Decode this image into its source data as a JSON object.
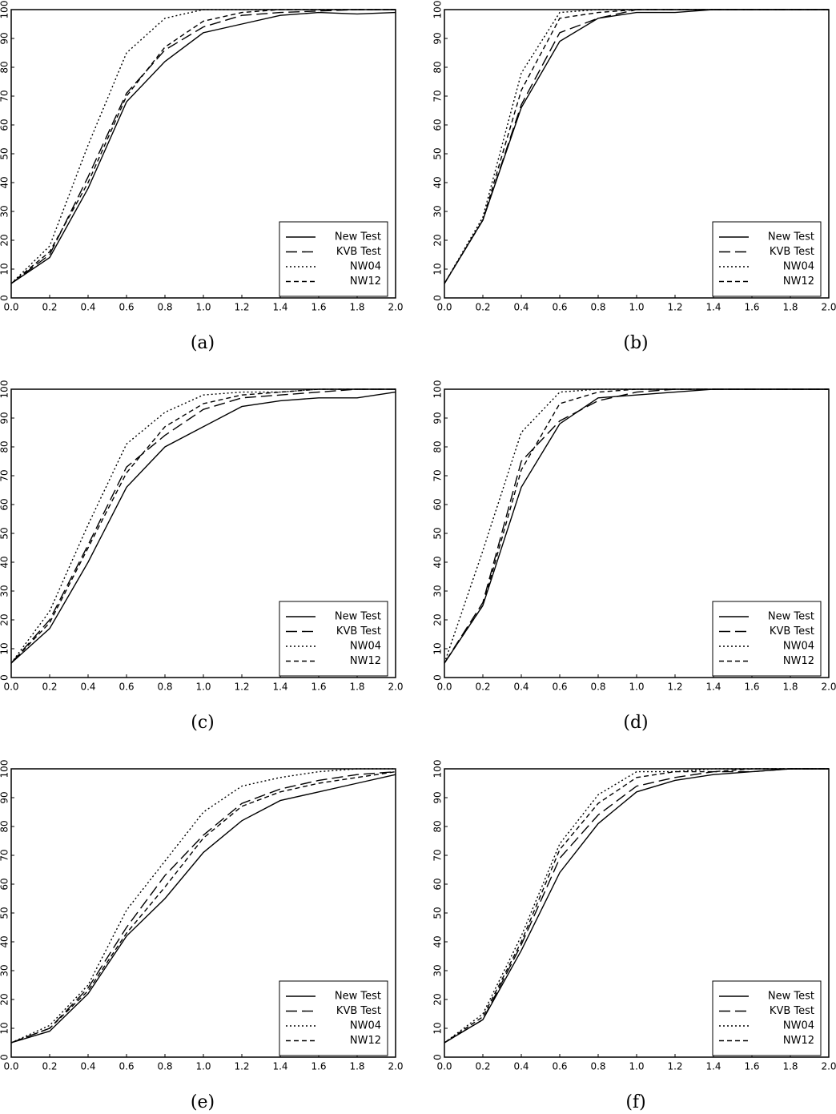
{
  "chart_data": [
    {
      "type": "line",
      "caption": "(a)",
      "x": [
        0,
        0.2,
        0.4,
        0.6,
        0.8,
        1,
        1.2,
        1.4,
        1.6,
        1.8,
        2
      ],
      "xlim": [
        0,
        2
      ],
      "ylim": [
        0,
        100
      ],
      "xticks": [
        {
          "value": 0,
          "label": "0.0"
        },
        0.2,
        0.4,
        0.6,
        0.8,
        {
          "value": 1,
          "label": "1.0"
        },
        1.2,
        1.4,
        1.6,
        1.8,
        {
          "value": 2,
          "label": "2.0"
        }
      ],
      "yticks": [
        0,
        10,
        20,
        30,
        40,
        50,
        60,
        70,
        80,
        90,
        100
      ],
      "legend": "lower right",
      "series": [
        {
          "name": "New Test",
          "color": "#000000",
          "dash": "solid",
          "values": [
            5,
            14,
            38,
            68,
            82,
            92,
            95,
            98,
            99,
            98.5,
            99
          ]
        },
        {
          "name": "KVB Test",
          "color": "#000000",
          "dash": "dashed",
          "values": [
            5,
            15,
            42,
            71,
            86,
            94,
            98,
            99,
            99.5,
            100,
            100
          ]
        },
        {
          "name": "NW04",
          "color": "#000000",
          "dash": "dotted",
          "values": [
            5,
            18,
            53,
            85,
            97,
            100,
            100,
            100,
            100,
            100,
            100
          ]
        },
        {
          "name": "NW12",
          "color": "#000000",
          "dash": "short-dashed",
          "values": [
            5,
            16,
            40,
            70,
            87,
            96,
            99,
            100,
            100,
            100,
            100
          ]
        }
      ]
    },
    {
      "type": "line",
      "caption": "(b)",
      "x": [
        0,
        0.2,
        0.4,
        0.6,
        0.8,
        1,
        1.2,
        1.4,
        1.6,
        1.8,
        2
      ],
      "xlim": [
        0,
        2
      ],
      "ylim": [
        0,
        100
      ],
      "xticks": [
        {
          "value": 0,
          "label": "0.0"
        },
        0.2,
        0.4,
        0.6,
        0.8,
        {
          "value": 1,
          "label": "1.0"
        },
        1.2,
        1.4,
        1.6,
        1.8,
        {
          "value": 2,
          "label": "2.0"
        }
      ],
      "yticks": [
        0,
        10,
        20,
        30,
        40,
        50,
        60,
        70,
        80,
        90,
        100
      ],
      "legend": "lower right",
      "series": [
        {
          "name": "New Test",
          "color": "#000000",
          "dash": "solid",
          "values": [
            5,
            27,
            66,
            89,
            97,
            99,
            99,
            100,
            100,
            100,
            100
          ]
        },
        {
          "name": "KVB Test",
          "color": "#000000",
          "dash": "dashed",
          "values": [
            5,
            27,
            67,
            92,
            97,
            100,
            100,
            100,
            100,
            100,
            100
          ]
        },
        {
          "name": "NW04",
          "color": "#000000",
          "dash": "dotted",
          "values": [
            5,
            28,
            78,
            99,
            100,
            100,
            100,
            100,
            100,
            100,
            100
          ]
        },
        {
          "name": "NW12",
          "color": "#000000",
          "dash": "short-dashed",
          "values": [
            5,
            27,
            72,
            97,
            99,
            100,
            100,
            100,
            100,
            100,
            100
          ]
        }
      ]
    },
    {
      "type": "line",
      "caption": "(c)",
      "x": [
        0,
        0.2,
        0.4,
        0.6,
        0.8,
        1,
        1.2,
        1.4,
        1.6,
        1.8,
        2
      ],
      "xlim": [
        0,
        2
      ],
      "ylim": [
        0,
        100
      ],
      "xticks": [
        {
          "value": 0,
          "label": "0.0"
        },
        0.2,
        0.4,
        0.6,
        0.8,
        {
          "value": 1,
          "label": "1.0"
        },
        1.2,
        1.4,
        1.6,
        1.8,
        {
          "value": 2,
          "label": "2.0"
        }
      ],
      "yticks": [
        0,
        10,
        20,
        30,
        40,
        50,
        60,
        70,
        80,
        90,
        100
      ],
      "legend": "lower right",
      "series": [
        {
          "name": "New Test",
          "color": "#000000",
          "dash": "solid",
          "values": [
            5,
            17,
            40,
            66,
            80,
            87,
            94,
            96,
            97,
            97,
            99
          ]
        },
        {
          "name": "KVB Test",
          "color": "#000000",
          "dash": "dashed",
          "values": [
            5,
            20,
            46,
            73,
            84,
            93,
            97,
            98,
            99,
            100,
            100
          ]
        },
        {
          "name": "NW04",
          "color": "#000000",
          "dash": "dotted",
          "values": [
            5,
            23,
            53,
            81,
            92,
            98,
            99,
            99,
            100,
            100,
            100
          ]
        },
        {
          "name": "NW12",
          "color": "#000000",
          "dash": "short-dashed",
          "values": [
            5,
            19,
            45,
            71,
            87,
            95,
            98,
            99,
            100,
            100,
            100
          ]
        }
      ]
    },
    {
      "type": "line",
      "caption": "(d)",
      "x": [
        0,
        0.2,
        0.4,
        0.6,
        0.8,
        1,
        1.2,
        1.4,
        1.6,
        1.8,
        2
      ],
      "xlim": [
        0,
        2
      ],
      "ylim": [
        0,
        100
      ],
      "xticks": [
        {
          "value": 0,
          "label": "0.0"
        },
        0.2,
        0.4,
        0.6,
        0.8,
        {
          "value": 1,
          "label": "1.0"
        },
        1.2,
        1.4,
        1.6,
        1.8,
        {
          "value": 2,
          "label": "2.0"
        }
      ],
      "yticks": [
        0,
        10,
        20,
        30,
        40,
        50,
        60,
        70,
        80,
        90,
        100
      ],
      "legend": "lower right",
      "series": [
        {
          "name": "New Test",
          "color": "#000000",
          "dash": "solid",
          "values": [
            5,
            25,
            66,
            88,
            97,
            98,
            99,
            100,
            100,
            100,
            100
          ]
        },
        {
          "name": "KVB Test",
          "color": "#000000",
          "dash": "dashed",
          "values": [
            5,
            26,
            75,
            89,
            96,
            99,
            100,
            100,
            100,
            100,
            100
          ]
        },
        {
          "name": "NW04",
          "color": "#000000",
          "dash": "dotted",
          "values": [
            5,
            44,
            85,
            99,
            100,
            100,
            100,
            100,
            100,
            100,
            100
          ]
        },
        {
          "name": "NW12",
          "color": "#000000",
          "dash": "short-dashed",
          "values": [
            5,
            25,
            72,
            95,
            99,
            100,
            100,
            100,
            100,
            100,
            100
          ]
        }
      ]
    },
    {
      "type": "line",
      "caption": "(e)",
      "x": [
        0,
        0.2,
        0.4,
        0.6,
        0.8,
        1,
        1.2,
        1.4,
        1.6,
        1.8,
        2
      ],
      "xlim": [
        0,
        2
      ],
      "ylim": [
        0,
        100
      ],
      "xticks": [
        {
          "value": 0,
          "label": "0.0"
        },
        0.2,
        0.4,
        0.6,
        0.8,
        {
          "value": 1,
          "label": "1.0"
        },
        1.2,
        1.4,
        1.6,
        1.8,
        {
          "value": 2,
          "label": "2.0"
        }
      ],
      "yticks": [
        0,
        10,
        20,
        30,
        40,
        50,
        60,
        70,
        80,
        90,
        100
      ],
      "legend": "lower right",
      "series": [
        {
          "name": "New Test",
          "color": "#000000",
          "dash": "solid",
          "values": [
            5,
            9,
            22,
            42,
            55,
            71,
            82,
            89,
            92,
            95,
            98
          ]
        },
        {
          "name": "KVB Test",
          "color": "#000000",
          "dash": "dashed",
          "values": [
            5,
            10,
            24,
            45,
            63,
            77,
            88,
            93,
            96,
            98,
            99
          ]
        },
        {
          "name": "NW04",
          "color": "#000000",
          "dash": "dotted",
          "values": [
            5,
            11,
            25,
            51,
            68,
            85,
            94,
            97,
            99,
            100,
            100
          ]
        },
        {
          "name": "NW12",
          "color": "#000000",
          "dash": "short-dashed",
          "values": [
            5,
            10,
            23,
            43,
            59,
            76,
            87,
            92,
            95,
            97,
            99
          ]
        }
      ]
    },
    {
      "type": "line",
      "caption": "(f)",
      "x": [
        0,
        0.2,
        0.4,
        0.6,
        0.8,
        1,
        1.2,
        1.4,
        1.6,
        1.8,
        2
      ],
      "xlim": [
        0,
        2
      ],
      "ylim": [
        0,
        100
      ],
      "xticks": [
        {
          "value": 0,
          "label": "0.0"
        },
        0.2,
        0.4,
        0.6,
        0.8,
        {
          "value": 1,
          "label": "1.0"
        },
        1.2,
        1.4,
        1.6,
        1.8,
        {
          "value": 2,
          "label": "2.0"
        }
      ],
      "yticks": [
        0,
        10,
        20,
        30,
        40,
        50,
        60,
        70,
        80,
        90,
        100
      ],
      "legend": "lower right",
      "series": [
        {
          "name": "New Test",
          "color": "#000000",
          "dash": "solid",
          "values": [
            5,
            13,
            37,
            64,
            81,
            92,
            96,
            98,
            99,
            100,
            100
          ]
        },
        {
          "name": "KVB Test",
          "color": "#000000",
          "dash": "dashed",
          "values": [
            5,
            13,
            39,
            69,
            84,
            94,
            97,
            99,
            99,
            100,
            100
          ]
        },
        {
          "name": "NW04",
          "color": "#000000",
          "dash": "dotted",
          "values": [
            5,
            15,
            42,
            74,
            91,
            99,
            99,
            100,
            100,
            100,
            100
          ]
        },
        {
          "name": "NW12",
          "color": "#000000",
          "dash": "short-dashed",
          "values": [
            5,
            14,
            40,
            72,
            88,
            97,
            99,
            99,
            100,
            100,
            100
          ]
        }
      ]
    }
  ]
}
